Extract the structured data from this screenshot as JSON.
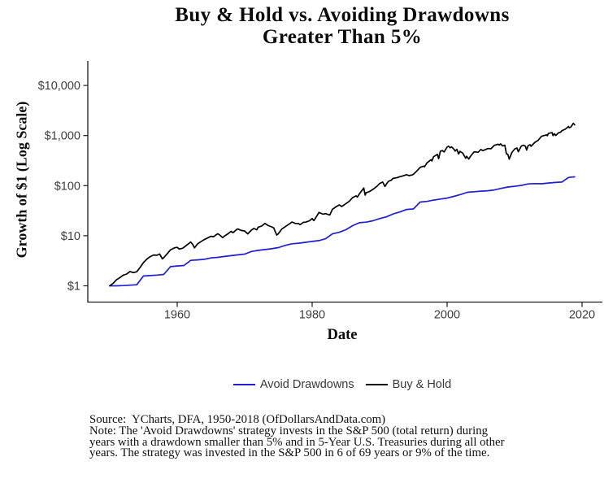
{
  "title": {
    "line1": "Buy & Hold vs. Avoiding Drawdowns",
    "line2": "Greater Than 5%"
  },
  "source_note": "Source:  YCharts, DFA, 1950-2018 (OfDollarsAndData.com)\nNote: The 'Avoid Drawdowns' strategy invests in the S&P 500 (total return) during\nyears with a drawdown smaller than 5% and in 5-Year U.S. Treasuries during all other\nyears. The strategy was invested in the S&P 500 in 6 of 69 years or 9% of the time.",
  "colors": {
    "background": "#ffffff",
    "axis_line": "#1a1a1a",
    "tick_text": "#3d3d3d",
    "avoid_drawdowns_blue": "#1e1ed2",
    "buy_hold_black": "#000000"
  },
  "chart_data": {
    "type": "line",
    "title": "Buy & Hold vs. Avoiding Drawdowns Greater Than 5%",
    "xlabel": "Date",
    "ylabel": "Growth of $1 (Log Scale)",
    "log_y": true,
    "grid": false,
    "legend_position": "bottom",
    "x_range": [
      1947,
      2023
    ],
    "y_range": [
      1,
      30000
    ],
    "x_ticks": [
      1960,
      1980,
      2000,
      2020
    ],
    "y_ticks": [
      {
        "label": "$1",
        "value": 1
      },
      {
        "label": "$10",
        "value": 10
      },
      {
        "label": "$100",
        "value": 100
      },
      {
        "label": "$1,000",
        "value": 1000
      },
      {
        "label": "$10,000",
        "value": 10000
      }
    ],
    "series": [
      {
        "name": "Avoid Drawdowns",
        "color": "#1e1ed2",
        "points": [
          [
            1950,
            1.0
          ],
          [
            1951,
            1.0
          ],
          [
            1952,
            1.01
          ],
          [
            1953,
            1.03
          ],
          [
            1954,
            1.05
          ],
          [
            1955,
            1.57
          ],
          [
            1956,
            1.6
          ],
          [
            1957,
            1.64
          ],
          [
            1958,
            1.69
          ],
          [
            1959,
            2.42
          ],
          [
            1960,
            2.49
          ],
          [
            1961,
            2.55
          ],
          [
            1962,
            3.22
          ],
          [
            1963,
            3.3
          ],
          [
            1964,
            3.38
          ],
          [
            1965,
            3.6
          ],
          [
            1966,
            3.7
          ],
          [
            1967,
            3.85
          ],
          [
            1968,
            4.0
          ],
          [
            1969,
            4.15
          ],
          [
            1970,
            4.3
          ],
          [
            1971,
            4.85
          ],
          [
            1972,
            5.1
          ],
          [
            1973,
            5.3
          ],
          [
            1974,
            5.5
          ],
          [
            1975,
            5.8
          ],
          [
            1976,
            6.4
          ],
          [
            1977,
            6.9
          ],
          [
            1978,
            7.1
          ],
          [
            1979,
            7.4
          ],
          [
            1980,
            7.7
          ],
          [
            1981,
            8.0
          ],
          [
            1982,
            8.7
          ],
          [
            1983,
            10.9
          ],
          [
            1984,
            11.7
          ],
          [
            1985,
            13.2
          ],
          [
            1986,
            15.9
          ],
          [
            1987,
            18.2
          ],
          [
            1988,
            18.7
          ],
          [
            1989,
            19.9
          ],
          [
            1990,
            22.0
          ],
          [
            1991,
            23.8
          ],
          [
            1992,
            27.2
          ],
          [
            1993,
            29.8
          ],
          [
            1994,
            33.5
          ],
          [
            1995,
            34.2
          ],
          [
            1996,
            47.0
          ],
          [
            1997,
            48.5
          ],
          [
            1998,
            51.5
          ],
          [
            1999,
            54.0
          ],
          [
            2000,
            56.5
          ],
          [
            2001,
            61.0
          ],
          [
            2002,
            66.5
          ],
          [
            2003,
            73.5
          ],
          [
            2004,
            75.5
          ],
          [
            2005,
            77.5
          ],
          [
            2006,
            79.0
          ],
          [
            2007,
            82.0
          ],
          [
            2008,
            88.0
          ],
          [
            2009,
            94.0
          ],
          [
            2010,
            97.0
          ],
          [
            2011,
            101.0
          ],
          [
            2012,
            108.0
          ],
          [
            2013,
            110.0
          ],
          [
            2014,
            109.0
          ],
          [
            2015,
            112.5
          ],
          [
            2016,
            115.5
          ],
          [
            2017,
            118.0
          ],
          [
            2018,
            146.0
          ],
          [
            2018.9,
            150.0
          ]
        ]
      },
      {
        "name": "Buy & Hold",
        "color": "#000000",
        "points": [
          [
            1950,
            1.0
          ],
          [
            1950.5,
            1.12
          ],
          [
            1951,
            1.32
          ],
          [
            1951.5,
            1.46
          ],
          [
            1952,
            1.63
          ],
          [
            1952.5,
            1.72
          ],
          [
            1953,
            1.93
          ],
          [
            1953.5,
            1.83
          ],
          [
            1954,
            1.91
          ],
          [
            1954.5,
            2.32
          ],
          [
            1955,
            2.91
          ],
          [
            1955.5,
            3.42
          ],
          [
            1956,
            3.83
          ],
          [
            1956.5,
            4.12
          ],
          [
            1957,
            4.08
          ],
          [
            1957.4,
            4.32
          ],
          [
            1957.8,
            3.46
          ],
          [
            1958,
            3.65
          ],
          [
            1958.5,
            4.35
          ],
          [
            1959,
            5.23
          ],
          [
            1959.6,
            5.75
          ],
          [
            1960,
            5.86
          ],
          [
            1960.3,
            5.42
          ],
          [
            1960.8,
            5.62
          ],
          [
            1961,
            5.89
          ],
          [
            1961.5,
            6.62
          ],
          [
            1962,
            7.47
          ],
          [
            1962.3,
            6.7
          ],
          [
            1962.55,
            5.72
          ],
          [
            1963,
            6.82
          ],
          [
            1963.5,
            7.6
          ],
          [
            1964,
            8.37
          ],
          [
            1964.5,
            9.02
          ],
          [
            1965,
            9.75
          ],
          [
            1965.4,
            9.55
          ],
          [
            1965.8,
            10.5
          ],
          [
            1966,
            10.97
          ],
          [
            1966.3,
            10.3
          ],
          [
            1966.75,
            9.18
          ],
          [
            1967,
            9.86
          ],
          [
            1967.5,
            10.9
          ],
          [
            1968,
            12.23
          ],
          [
            1968.25,
            11.5
          ],
          [
            1968.9,
            13.6
          ],
          [
            1969,
            13.59
          ],
          [
            1969.5,
            12.75
          ],
          [
            1970,
            12.44
          ],
          [
            1970.45,
            10.9
          ],
          [
            1971,
            12.94
          ],
          [
            1971.35,
            14.0
          ],
          [
            1971.8,
            13.15
          ],
          [
            1972,
            14.79
          ],
          [
            1972.5,
            15.6
          ],
          [
            1973,
            17.6
          ],
          [
            1973.5,
            15.9
          ],
          [
            1974,
            15.01
          ],
          [
            1974.3,
            14.3
          ],
          [
            1974.75,
            10.3
          ],
          [
            1975,
            11.04
          ],
          [
            1975.5,
            13.6
          ],
          [
            1976,
            15.15
          ],
          [
            1976.7,
            17.5
          ],
          [
            1977,
            18.78
          ],
          [
            1977.5,
            17.6
          ],
          [
            1978,
            17.43
          ],
          [
            1978.2,
            16.6
          ],
          [
            1978.7,
            18.5
          ],
          [
            1979,
            18.57
          ],
          [
            1979.6,
            19.9
          ],
          [
            1980,
            21.99
          ],
          [
            1980.25,
            20.0
          ],
          [
            1980.9,
            27.6
          ],
          [
            1981,
            29.12
          ],
          [
            1981.6,
            26.9
          ],
          [
            1982,
            27.68
          ],
          [
            1982.6,
            25.8
          ],
          [
            1982.9,
            31.5
          ],
          [
            1983,
            33.66
          ],
          [
            1983.5,
            37.6
          ],
          [
            1984,
            41.23
          ],
          [
            1984.4,
            38.4
          ],
          [
            1985,
            43.8
          ],
          [
            1985.5,
            48.6
          ],
          [
            1986,
            57.72
          ],
          [
            1986.5,
            62.5
          ],
          [
            1986.7,
            59.0
          ],
          [
            1987,
            68.51
          ],
          [
            1987.65,
            89.5
          ],
          [
            1987.85,
            64.8
          ],
          [
            1988,
            72.1
          ],
          [
            1988.5,
            76.5
          ],
          [
            1989,
            84.07
          ],
          [
            1989.7,
            99.5
          ],
          [
            1990,
            110.68
          ],
          [
            1990.45,
            118.0
          ],
          [
            1990.8,
            96.5
          ],
          [
            1991,
            107.24
          ],
          [
            1991.3,
            122.0
          ],
          [
            1991.7,
            128.0
          ],
          [
            1992,
            139.93
          ],
          [
            1992.5,
            143.0
          ],
          [
            1993,
            150.6
          ],
          [
            1993.5,
            157.0
          ],
          [
            1994,
            165.75
          ],
          [
            1994.35,
            158.5
          ],
          [
            1994.8,
            163.0
          ],
          [
            1995,
            167.93
          ],
          [
            1995.5,
            196.0
          ],
          [
            1996,
            231.0
          ],
          [
            1996.5,
            245.0
          ],
          [
            1996.65,
            238.0
          ],
          [
            1997,
            284.04
          ],
          [
            1997.6,
            330.0
          ],
          [
            1997.75,
            310.0
          ],
          [
            1998,
            378.78
          ],
          [
            1998.55,
            422.0
          ],
          [
            1998.75,
            345.0
          ],
          [
            1999,
            487.06
          ],
          [
            1999.3,
            500.0
          ],
          [
            1999.55,
            470.0
          ],
          [
            2000,
            589.5
          ],
          [
            2000.2,
            612.0
          ],
          [
            2000.45,
            570.0
          ],
          [
            2000.65,
            595.0
          ],
          [
            2001,
            535.83
          ],
          [
            2001.2,
            490.0
          ],
          [
            2001.45,
            530.0
          ],
          [
            2001.7,
            430.0
          ],
          [
            2001.9,
            485.0
          ],
          [
            2002,
            472.14
          ],
          [
            2002.3,
            450.0
          ],
          [
            2002.75,
            352.0
          ],
          [
            2002.9,
            385.0
          ],
          [
            2003,
            368.0
          ],
          [
            2003.2,
            340.0
          ],
          [
            2003.5,
            390.0
          ],
          [
            2004,
            473.28
          ],
          [
            2004.6,
            465.0
          ],
          [
            2005,
            524.78
          ],
          [
            2005.3,
            500.0
          ],
          [
            2005.8,
            530.0
          ],
          [
            2006,
            550.52
          ],
          [
            2006.5,
            545.0
          ],
          [
            2007,
            637.47
          ],
          [
            2007.55,
            670.0
          ],
          [
            2007.75,
            645.0
          ],
          [
            2007.9,
            680.0
          ],
          [
            2008,
            672.49
          ],
          [
            2008.2,
            620.0
          ],
          [
            2008.55,
            640.0
          ],
          [
            2008.8,
            430.0
          ],
          [
            2009,
            423.72
          ],
          [
            2009.2,
            338.0
          ],
          [
            2009.6,
            460.0
          ],
          [
            2010,
            535.86
          ],
          [
            2010.35,
            565.0
          ],
          [
            2010.55,
            475.0
          ],
          [
            2011,
            616.62
          ],
          [
            2011.35,
            640.0
          ],
          [
            2011.6,
            615.0
          ],
          [
            2011.78,
            515.0
          ],
          [
            2011.9,
            570.0
          ],
          [
            2012,
            629.58
          ],
          [
            2012.3,
            655.0
          ],
          [
            2012.45,
            610.0
          ],
          [
            2013,
            730.36
          ],
          [
            2013.5,
            805.0
          ],
          [
            2014,
            966.86
          ],
          [
            2014.75,
            1035.0
          ],
          [
            2014.85,
            990.0
          ],
          [
            2015,
            1099.17
          ],
          [
            2015.2,
            1120.0
          ],
          [
            2015.55,
            1145.0
          ],
          [
            2015.7,
            995.0
          ],
          [
            2015.9,
            1090.0
          ],
          [
            2016.1,
            1005.0
          ],
          [
            2016.5,
            1130.0
          ],
          [
            2016.85,
            1180.0
          ],
          [
            2017,
            1247.9
          ],
          [
            2017.5,
            1340.0
          ],
          [
            2018,
            1520.59
          ],
          [
            2018.1,
            1430.0
          ],
          [
            2018.35,
            1480.0
          ],
          [
            2018.7,
            1755.0
          ],
          [
            2018.9,
            1640.0
          ]
        ]
      }
    ]
  },
  "legend": {
    "items": [
      "Avoid Drawdowns",
      "Buy & Hold"
    ]
  }
}
